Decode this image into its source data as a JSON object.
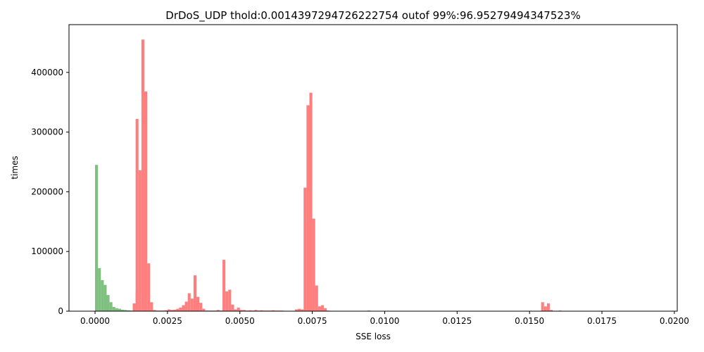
{
  "chart_data": {
    "type": "bar",
    "title": "DrDoS_UDP thold:0.0014397294726222754 outof 99%:96.95279494347523%",
    "xlabel": "SSE loss",
    "ylabel": "times",
    "xlim": [
      -0.0009,
      0.0201
    ],
    "ylim": [
      0,
      480000
    ],
    "bin_width": 0.0001,
    "x_ticks": [
      0.0,
      0.0025,
      0.005,
      0.0075,
      0.01,
      0.0125,
      0.015,
      0.0175,
      0.02
    ],
    "x_tick_labels": [
      "0.0000",
      "0.0025",
      "0.0050",
      "0.0075",
      "0.0100",
      "0.0125",
      "0.0150",
      "0.0175",
      "0.0200"
    ],
    "y_ticks": [
      0,
      100000,
      200000,
      300000,
      400000
    ],
    "y_tick_labels": [
      "0",
      "100000",
      "200000",
      "300000",
      "400000"
    ],
    "grid": false,
    "series": [
      {
        "color": "#7fbf7f",
        "bins": [
          [
            0.0,
            245000
          ],
          [
            0.0001,
            72000
          ],
          [
            0.0002,
            52000
          ],
          [
            0.0003,
            44000
          ],
          [
            0.0004,
            27000
          ],
          [
            0.0005,
            15000
          ],
          [
            0.0006,
            7000
          ],
          [
            0.0007,
            5000
          ],
          [
            0.0008,
            4000
          ],
          [
            0.0009,
            2500
          ],
          [
            0.001,
            2000
          ],
          [
            0.0011,
            1500
          ],
          [
            0.0012,
            1000
          ],
          [
            0.0013,
            500
          ]
        ]
      },
      {
        "color": "#ff7f7f",
        "bins": [
          [
            0.0013,
            13000
          ],
          [
            0.0014,
            32000
          ],
          [
            0.0014,
            322000
          ],
          [
            0.0015,
            236000
          ],
          [
            0.0016,
            455000
          ],
          [
            0.0017,
            368000
          ],
          [
            0.0018,
            80000
          ],
          [
            0.0019,
            15000
          ],
          [
            0.002,
            2000
          ],
          [
            0.0021,
            1000
          ],
          [
            0.0022,
            1000
          ],
          [
            0.0023,
            1000
          ],
          [
            0.0024,
            1500
          ],
          [
            0.0025,
            3000
          ],
          [
            0.0026,
            2000
          ],
          [
            0.0027,
            2500
          ],
          [
            0.0028,
            4000
          ],
          [
            0.0029,
            6000
          ],
          [
            0.003,
            10000
          ],
          [
            0.0031,
            16000
          ],
          [
            0.0032,
            30000
          ],
          [
            0.0033,
            21000
          ],
          [
            0.0034,
            60000
          ],
          [
            0.0035,
            24000
          ],
          [
            0.0036,
            14000
          ],
          [
            0.0037,
            4000
          ],
          [
            0.0038,
            1000
          ],
          [
            0.0039,
            1000
          ],
          [
            0.004,
            1000
          ],
          [
            0.0041,
            1000
          ],
          [
            0.0042,
            2000
          ],
          [
            0.0043,
            1000
          ],
          [
            0.0044,
            86000
          ],
          [
            0.0045,
            33000
          ],
          [
            0.0046,
            36000
          ],
          [
            0.0047,
            11000
          ],
          [
            0.0048,
            3000
          ],
          [
            0.0049,
            6000
          ],
          [
            0.005,
            2000
          ],
          [
            0.0051,
            2000
          ],
          [
            0.0052,
            1000
          ],
          [
            0.0053,
            1500
          ],
          [
            0.0054,
            1000
          ],
          [
            0.0055,
            2000
          ],
          [
            0.0056,
            1000
          ],
          [
            0.0057,
            1500
          ],
          [
            0.0058,
            1000
          ],
          [
            0.0059,
            1000
          ],
          [
            0.006,
            1000
          ],
          [
            0.0061,
            1500
          ],
          [
            0.0062,
            1000
          ],
          [
            0.0063,
            1000
          ],
          [
            0.0064,
            1000
          ],
          [
            0.0065,
            500
          ],
          [
            0.0069,
            3000
          ],
          [
            0.007,
            4000
          ],
          [
            0.0071,
            3000
          ],
          [
            0.0072,
            207000
          ],
          [
            0.0073,
            345000
          ],
          [
            0.0074,
            366000
          ],
          [
            0.0075,
            155000
          ],
          [
            0.0076,
            43000
          ],
          [
            0.0077,
            8000
          ],
          [
            0.0078,
            10000
          ],
          [
            0.0079,
            5000
          ],
          [
            0.008,
            1000
          ],
          [
            0.0094,
            1000
          ],
          [
            0.0154,
            15000
          ],
          [
            0.0155,
            8000
          ],
          [
            0.0156,
            13000
          ],
          [
            0.0157,
            2000
          ],
          [
            0.016,
            1000
          ]
        ]
      }
    ]
  }
}
